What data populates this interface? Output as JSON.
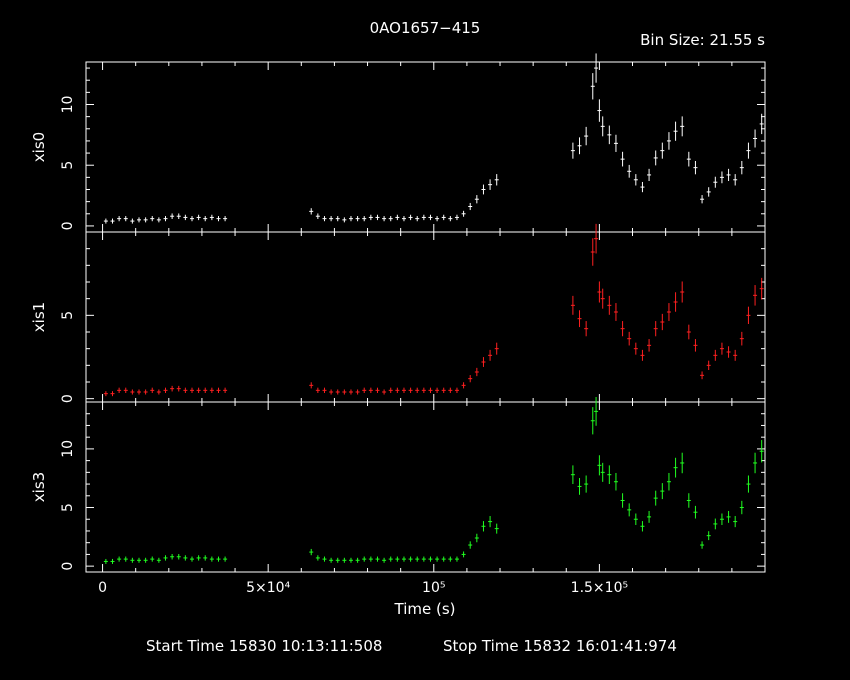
{
  "title": "0AO1657−415",
  "bin_size": "Bin Size: 21.55 s",
  "footer": {
    "start": "Start Time 15830 10:13:11:508",
    "stop": "Stop Time 15832 16:01:41:974"
  },
  "chart_data": {
    "type": "scatter",
    "xlabel": "Time (s)",
    "xlim": [
      -5000,
      200000
    ],
    "x_ticks": [
      {
        "value": 0,
        "label": "0"
      },
      {
        "value": 50000,
        "label": "5×10⁴"
      },
      {
        "value": 100000,
        "label": "10⁵"
      },
      {
        "value": 150000,
        "label": "1.5×10⁵"
      }
    ],
    "panels": [
      {
        "name": "xis0",
        "color": "#ffffff",
        "ylim": [
          -0.5,
          13.5
        ],
        "y_ticks": [
          0,
          5,
          10
        ],
        "points": [
          [
            1000,
            0.4
          ],
          [
            3000,
            0.4
          ],
          [
            5000,
            0.6
          ],
          [
            7000,
            0.6
          ],
          [
            9000,
            0.4
          ],
          [
            11000,
            0.5
          ],
          [
            13000,
            0.5
          ],
          [
            15000,
            0.6
          ],
          [
            17000,
            0.5
          ],
          [
            19000,
            0.6
          ],
          [
            21000,
            0.8
          ],
          [
            23000,
            0.8
          ],
          [
            25000,
            0.7
          ],
          [
            27000,
            0.6
          ],
          [
            29000,
            0.7
          ],
          [
            31000,
            0.6
          ],
          [
            33000,
            0.7
          ],
          [
            35000,
            0.6
          ],
          [
            37000,
            0.6
          ],
          [
            63000,
            1.2
          ],
          [
            65000,
            0.8
          ],
          [
            67000,
            0.6
          ],
          [
            69000,
            0.6
          ],
          [
            71000,
            0.6
          ],
          [
            73000,
            0.5
          ],
          [
            75000,
            0.6
          ],
          [
            77000,
            0.6
          ],
          [
            79000,
            0.6
          ],
          [
            81000,
            0.7
          ],
          [
            83000,
            0.7
          ],
          [
            85000,
            0.6
          ],
          [
            87000,
            0.6
          ],
          [
            89000,
            0.7
          ],
          [
            91000,
            0.6
          ],
          [
            93000,
            0.7
          ],
          [
            95000,
            0.6
          ],
          [
            97000,
            0.7
          ],
          [
            99000,
            0.7
          ],
          [
            101000,
            0.6
          ],
          [
            103000,
            0.7
          ],
          [
            105000,
            0.6
          ],
          [
            107000,
            0.7
          ],
          [
            109000,
            1.0
          ],
          [
            111000,
            1.6
          ],
          [
            113000,
            2.2
          ],
          [
            115000,
            3.0
          ],
          [
            117000,
            3.4
          ],
          [
            119000,
            3.8
          ],
          [
            142000,
            6.2
          ],
          [
            144000,
            6.6
          ],
          [
            146000,
            7.4
          ],
          [
            148000,
            11.5
          ],
          [
            149000,
            13.0
          ],
          [
            150000,
            9.5
          ],
          [
            151000,
            8.2
          ],
          [
            153000,
            7.5
          ],
          [
            155000,
            6.8
          ],
          [
            157000,
            5.5
          ],
          [
            159000,
            4.5
          ],
          [
            161000,
            3.8
          ],
          [
            163000,
            3.2
          ],
          [
            165000,
            4.2
          ],
          [
            167000,
            5.6
          ],
          [
            169000,
            6.2
          ],
          [
            171000,
            7.0
          ],
          [
            173000,
            7.8
          ],
          [
            175000,
            8.2
          ],
          [
            177000,
            5.5
          ],
          [
            179000,
            4.8
          ],
          [
            181000,
            2.2
          ],
          [
            183000,
            2.8
          ],
          [
            185000,
            3.6
          ],
          [
            187000,
            4.0
          ],
          [
            189000,
            4.2
          ],
          [
            191000,
            3.8
          ],
          [
            193000,
            4.8
          ],
          [
            195000,
            6.2
          ],
          [
            197000,
            7.2
          ],
          [
            199000,
            8.4
          ]
        ]
      },
      {
        "name": "xis1",
        "color": "#ff2020",
        "ylim": [
          -0.2,
          10.0
        ],
        "y_ticks": [
          0,
          5
        ],
        "points": [
          [
            1000,
            0.3
          ],
          [
            3000,
            0.3
          ],
          [
            5000,
            0.5
          ],
          [
            7000,
            0.5
          ],
          [
            9000,
            0.4
          ],
          [
            11000,
            0.4
          ],
          [
            13000,
            0.4
          ],
          [
            15000,
            0.5
          ],
          [
            17000,
            0.4
          ],
          [
            19000,
            0.5
          ],
          [
            21000,
            0.6
          ],
          [
            23000,
            0.6
          ],
          [
            25000,
            0.5
          ],
          [
            27000,
            0.5
          ],
          [
            29000,
            0.5
          ],
          [
            31000,
            0.5
          ],
          [
            33000,
            0.5
          ],
          [
            35000,
            0.5
          ],
          [
            37000,
            0.5
          ],
          [
            63000,
            0.8
          ],
          [
            65000,
            0.5
          ],
          [
            67000,
            0.5
          ],
          [
            69000,
            0.4
          ],
          [
            71000,
            0.4
          ],
          [
            73000,
            0.4
          ],
          [
            75000,
            0.4
          ],
          [
            77000,
            0.4
          ],
          [
            79000,
            0.5
          ],
          [
            81000,
            0.5
          ],
          [
            83000,
            0.5
          ],
          [
            85000,
            0.4
          ],
          [
            87000,
            0.5
          ],
          [
            89000,
            0.5
          ],
          [
            91000,
            0.5
          ],
          [
            93000,
            0.5
          ],
          [
            95000,
            0.5
          ],
          [
            97000,
            0.5
          ],
          [
            99000,
            0.5
          ],
          [
            101000,
            0.5
          ],
          [
            103000,
            0.5
          ],
          [
            105000,
            0.5
          ],
          [
            107000,
            0.5
          ],
          [
            109000,
            0.8
          ],
          [
            111000,
            1.2
          ],
          [
            113000,
            1.6
          ],
          [
            115000,
            2.2
          ],
          [
            117000,
            2.6
          ],
          [
            119000,
            3.0
          ],
          [
            142000,
            5.6
          ],
          [
            144000,
            4.8
          ],
          [
            146000,
            4.2
          ],
          [
            148000,
            8.8
          ],
          [
            149000,
            9.6
          ],
          [
            150000,
            6.4
          ],
          [
            151000,
            6.0
          ],
          [
            153000,
            5.6
          ],
          [
            155000,
            5.2
          ],
          [
            157000,
            4.2
          ],
          [
            159000,
            3.6
          ],
          [
            161000,
            3.0
          ],
          [
            163000,
            2.6
          ],
          [
            165000,
            3.2
          ],
          [
            167000,
            4.2
          ],
          [
            169000,
            4.6
          ],
          [
            171000,
            5.2
          ],
          [
            173000,
            5.8
          ],
          [
            175000,
            6.4
          ],
          [
            177000,
            4.0
          ],
          [
            179000,
            3.2
          ],
          [
            181000,
            1.4
          ],
          [
            183000,
            2.0
          ],
          [
            185000,
            2.6
          ],
          [
            187000,
            3.0
          ],
          [
            189000,
            2.8
          ],
          [
            191000,
            2.6
          ],
          [
            193000,
            3.6
          ],
          [
            195000,
            5.0
          ],
          [
            197000,
            6.2
          ],
          [
            199000,
            6.6
          ]
        ]
      },
      {
        "name": "xis3",
        "color": "#20ff20",
        "ylim": [
          -0.5,
          14.0
        ],
        "y_ticks": [
          0,
          5,
          10
        ],
        "points": [
          [
            1000,
            0.4
          ],
          [
            3000,
            0.4
          ],
          [
            5000,
            0.6
          ],
          [
            7000,
            0.6
          ],
          [
            9000,
            0.5
          ],
          [
            11000,
            0.5
          ],
          [
            13000,
            0.5
          ],
          [
            15000,
            0.6
          ],
          [
            17000,
            0.5
          ],
          [
            19000,
            0.7
          ],
          [
            21000,
            0.8
          ],
          [
            23000,
            0.8
          ],
          [
            25000,
            0.7
          ],
          [
            27000,
            0.6
          ],
          [
            29000,
            0.7
          ],
          [
            31000,
            0.7
          ],
          [
            33000,
            0.6
          ],
          [
            35000,
            0.6
          ],
          [
            37000,
            0.6
          ],
          [
            63000,
            1.2
          ],
          [
            65000,
            0.7
          ],
          [
            67000,
            0.6
          ],
          [
            69000,
            0.5
          ],
          [
            71000,
            0.5
          ],
          [
            73000,
            0.5
          ],
          [
            75000,
            0.5
          ],
          [
            77000,
            0.5
          ],
          [
            79000,
            0.6
          ],
          [
            81000,
            0.6
          ],
          [
            83000,
            0.6
          ],
          [
            85000,
            0.5
          ],
          [
            87000,
            0.6
          ],
          [
            89000,
            0.6
          ],
          [
            91000,
            0.6
          ],
          [
            93000,
            0.6
          ],
          [
            95000,
            0.6
          ],
          [
            97000,
            0.6
          ],
          [
            99000,
            0.6
          ],
          [
            101000,
            0.6
          ],
          [
            103000,
            0.6
          ],
          [
            105000,
            0.6
          ],
          [
            107000,
            0.6
          ],
          [
            109000,
            1.0
          ],
          [
            111000,
            1.8
          ],
          [
            113000,
            2.4
          ],
          [
            115000,
            3.4
          ],
          [
            117000,
            3.8
          ],
          [
            119000,
            3.2
          ],
          [
            142000,
            7.8
          ],
          [
            144000,
            6.8
          ],
          [
            146000,
            7.0
          ],
          [
            148000,
            12.4
          ],
          [
            149000,
            13.2
          ],
          [
            150000,
            8.6
          ],
          [
            151000,
            8.0
          ],
          [
            153000,
            7.8
          ],
          [
            155000,
            7.2
          ],
          [
            157000,
            5.6
          ],
          [
            159000,
            4.8
          ],
          [
            161000,
            4.0
          ],
          [
            163000,
            3.4
          ],
          [
            165000,
            4.2
          ],
          [
            167000,
            5.8
          ],
          [
            169000,
            6.4
          ],
          [
            171000,
            7.2
          ],
          [
            173000,
            8.4
          ],
          [
            175000,
            8.8
          ],
          [
            177000,
            5.6
          ],
          [
            179000,
            4.6
          ],
          [
            181000,
            1.8
          ],
          [
            183000,
            2.6
          ],
          [
            185000,
            3.6
          ],
          [
            187000,
            4.0
          ],
          [
            189000,
            4.2
          ],
          [
            191000,
            3.8
          ],
          [
            193000,
            5.0
          ],
          [
            195000,
            7.0
          ],
          [
            197000,
            8.8
          ],
          [
            199000,
            9.8
          ]
        ]
      }
    ]
  }
}
